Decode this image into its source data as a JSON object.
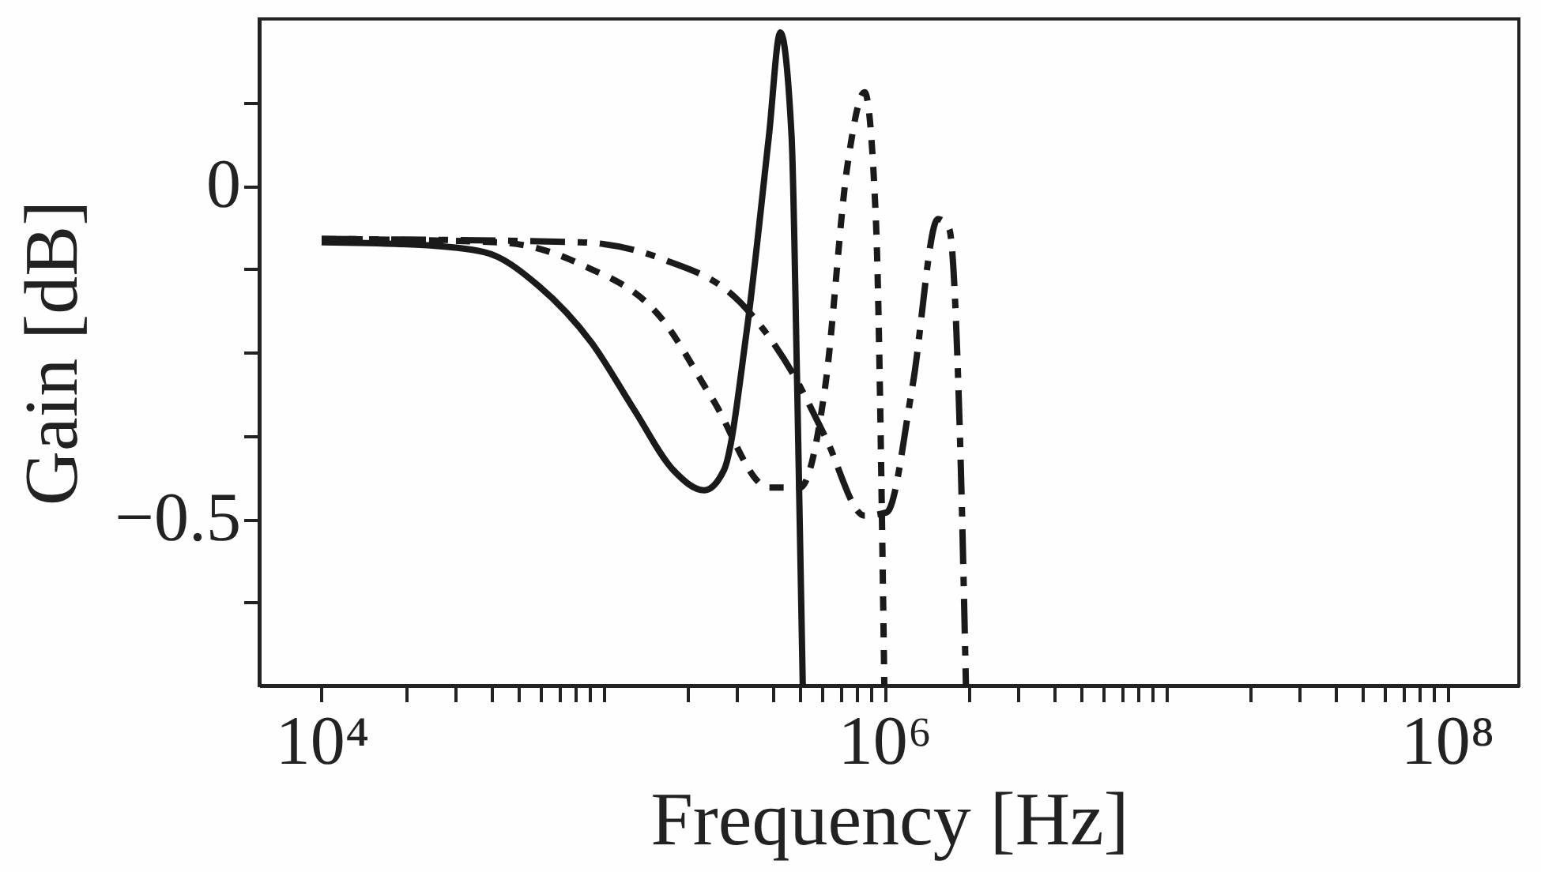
{
  "chart_data": {
    "type": "line",
    "xlabel": "Frequency [Hz]",
    "ylabel": "Gain [dB]",
    "log": "x",
    "xlim": [
      6000,
      180000000
    ],
    "ylim": [
      -0.75,
      0.25
    ],
    "xticks": [
      {
        "value": 10000,
        "label": "10⁴"
      },
      {
        "value": 20000,
        "label": null
      },
      {
        "value": 30000,
        "label": null
      },
      {
        "value": 40000,
        "label": null
      },
      {
        "value": 50000,
        "label": null
      },
      {
        "value": 60000,
        "label": null
      },
      {
        "value": 70000,
        "label": null
      },
      {
        "value": 80000,
        "label": null
      },
      {
        "value": 90000,
        "label": null
      },
      {
        "value": 100000,
        "label": null
      },
      {
        "value": 200000,
        "label": null
      },
      {
        "value": 300000,
        "label": null
      },
      {
        "value": 400000,
        "label": null
      },
      {
        "value": 500000,
        "label": null
      },
      {
        "value": 600000,
        "label": null
      },
      {
        "value": 700000,
        "label": null
      },
      {
        "value": 800000,
        "label": null
      },
      {
        "value": 900000,
        "label": null
      },
      {
        "value": 1000000,
        "label": "10⁶"
      },
      {
        "value": 2000000,
        "label": null
      },
      {
        "value": 3000000,
        "label": null
      },
      {
        "value": 4000000,
        "label": null
      },
      {
        "value": 5000000,
        "label": null
      },
      {
        "value": 6000000,
        "label": null
      },
      {
        "value": 7000000,
        "label": null
      },
      {
        "value": 8000000,
        "label": null
      },
      {
        "value": 9000000,
        "label": null
      },
      {
        "value": 10000000,
        "label": null
      },
      {
        "value": 20000000,
        "label": null
      },
      {
        "value": 30000000,
        "label": null
      },
      {
        "value": 40000000,
        "label": null
      },
      {
        "value": 50000000,
        "label": null
      },
      {
        "value": 60000000,
        "label": null
      },
      {
        "value": 70000000,
        "label": null
      },
      {
        "value": 80000000,
        "label": null
      },
      {
        "value": 90000000,
        "label": null
      },
      {
        "value": 100000000,
        "label": "10⁸"
      }
    ],
    "yticks": [
      {
        "value": 0.125,
        "label": null
      },
      {
        "value": 0,
        "label": "0"
      },
      {
        "value": -0.125,
        "label": null
      },
      {
        "value": -0.25,
        "label": null
      },
      {
        "value": -0.375,
        "label": null
      },
      {
        "value": -0.5,
        "label": "−0.5"
      },
      {
        "value": -0.625,
        "label": null
      }
    ],
    "grid": false,
    "marker": "none",
    "series": [
      {
        "color": "#1a1a1a",
        "line_style": "solid",
        "x": [
          10000,
          22400,
          38000,
          58900,
          91200,
          129000,
          178000,
          229000,
          269000,
          324000,
          389000,
          427000,
          468000,
          490000,
          513000
        ],
        "values": [
          -0.085,
          -0.089,
          -0.1,
          -0.15,
          -0.236,
          -0.336,
          -0.427,
          -0.457,
          -0.427,
          -0.219,
          0.075,
          0.23,
          0.075,
          -0.3,
          -0.75
        ]
      },
      {
        "color": "#1a1a1a",
        "line_style": "dotted",
        "x": [
          10000,
          42700,
          83200,
          162000,
          245000,
          389000,
          501000,
          617000,
          741000,
          851000,
          933000,
          1000000
        ],
        "values": [
          -0.08,
          -0.085,
          -0.118,
          -0.2,
          -0.32,
          -0.453,
          -0.453,
          -0.3,
          0.033,
          0.14,
          -0.05,
          -0.75
        ]
      },
      {
        "color": "#1a1a1a",
        "line_style": "dashed",
        "x": [
          10000,
          83200,
          162000,
          309000,
          479000,
          617000,
          851000,
          1020000,
          1260000,
          1550000,
          1700000,
          1860000,
          1950000
        ],
        "values": [
          -0.08,
          -0.085,
          -0.11,
          -0.176,
          -0.286,
          -0.377,
          -0.495,
          -0.49,
          -0.3,
          -0.05,
          -0.065,
          -0.387,
          -0.75
        ]
      }
    ]
  }
}
